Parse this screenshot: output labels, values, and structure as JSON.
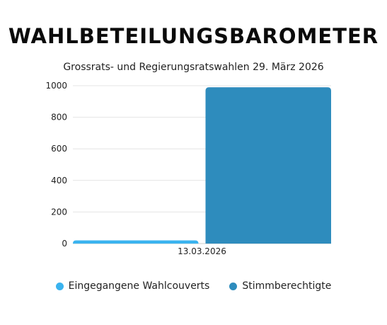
{
  "chart_data": {
    "type": "bar",
    "title": "WAHLBETEILUNGSBAROMETER",
    "subtitle": "Grossrats- und Regierungsratswahlen 29. März 2026",
    "categories": [
      "13.03.2026"
    ],
    "series": [
      {
        "name": "Eingegangene Wahlcouverts",
        "values": [
          20
        ],
        "color": "#3ab3ef"
      },
      {
        "name": "Stimmberechtigte",
        "values": [
          990
        ],
        "color": "#2e8cbd"
      }
    ],
    "ylim": [
      0,
      1000
    ],
    "yticks": [
      0,
      200,
      400,
      600,
      800,
      1000
    ],
    "grid": true,
    "legend": "bottom"
  }
}
